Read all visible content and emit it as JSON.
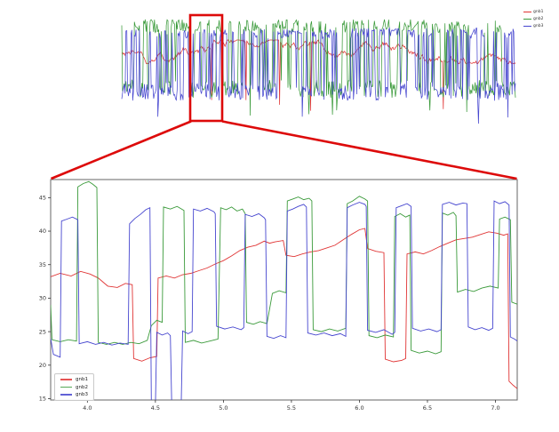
{
  "figure": {
    "background": "#ffffff",
    "highlight_color": "#dd0a0a",
    "spine_color": "#666666",
    "tick_color": "#333333"
  },
  "series_meta": [
    {
      "name": "gnb1",
      "color": "#e03535"
    },
    {
      "name": "gnb2",
      "color": "#3a9a3a"
    },
    {
      "name": "gnb3",
      "color": "#4646cf"
    }
  ],
  "chart_data": [
    {
      "id": "overview",
      "type": "line",
      "legend_position": "upper right",
      "axes_visible": false,
      "n": 470,
      "seed": 97,
      "series": [
        {
          "name": "gnb1",
          "color": "#e03535",
          "kind": "wander",
          "base": 36.5,
          "range": [
            32.5,
            40.5
          ],
          "step": 0.9,
          "dip_p": 0.018,
          "dip": [
            16,
            21
          ]
        },
        {
          "name": "gnb2",
          "color": "#3a9a3a",
          "kind": "square",
          "high": [
            43,
            47.5
          ],
          "low": [
            21,
            27
          ],
          "toggle_p": 0.22,
          "deep_p": 0.012,
          "deep": [
            14,
            17
          ]
        },
        {
          "name": "gnb3",
          "color": "#4646cf",
          "kind": "square",
          "high": [
            41,
            44.5
          ],
          "low": [
            20,
            26
          ],
          "toggle_p": 0.26,
          "deep_p": 0.01,
          "deep": [
            12,
            15
          ]
        }
      ]
    },
    {
      "id": "zoom",
      "type": "line",
      "legend_position": "lower left",
      "xlim": [
        3.73,
        7.16
      ],
      "ylim": [
        14.8,
        47.7
      ],
      "xticks": [
        4.0,
        4.5,
        5.0,
        5.5,
        6.0,
        6.5,
        7.0
      ],
      "xtick_labels": [
        "4.0",
        "4.5",
        "5.0",
        "5.5",
        "6.0",
        "6.5",
        "7.0"
      ],
      "yticks": [
        15,
        20,
        25,
        30,
        35,
        40,
        45
      ],
      "ytick_labels": [
        "15",
        "20",
        "25",
        "30",
        "35",
        "40",
        "45"
      ],
      "series": [
        {
          "name": "gnb1",
          "color": "#e03535",
          "points": [
            [
              3.73,
              33.2
            ],
            [
              3.8,
              33.7
            ],
            [
              3.88,
              33.3
            ],
            [
              3.95,
              34.0
            ],
            [
              4.02,
              33.6
            ],
            [
              4.08,
              33.0
            ],
            [
              4.15,
              31.8
            ],
            [
              4.22,
              31.6
            ],
            [
              4.28,
              32.2
            ],
            [
              4.33,
              32.0
            ],
            [
              4.34,
              21.0
            ],
            [
              4.4,
              20.6
            ],
            [
              4.46,
              21.1
            ],
            [
              4.51,
              21.3
            ],
            [
              4.52,
              33.0
            ],
            [
              4.58,
              33.3
            ],
            [
              4.64,
              33.0
            ],
            [
              4.7,
              33.5
            ],
            [
              4.76,
              33.7
            ],
            [
              4.82,
              34.1
            ],
            [
              4.88,
              34.5
            ],
            [
              4.94,
              35.1
            ],
            [
              5.0,
              35.6
            ],
            [
              5.06,
              36.3
            ],
            [
              5.12,
              37.1
            ],
            [
              5.18,
              37.6
            ],
            [
              5.24,
              37.9
            ],
            [
              5.3,
              38.5
            ],
            [
              5.34,
              38.2
            ],
            [
              5.38,
              38.4
            ],
            [
              5.44,
              38.6
            ],
            [
              5.46,
              36.4
            ],
            [
              5.52,
              36.2
            ],
            [
              5.58,
              36.6
            ],
            [
              5.64,
              36.9
            ],
            [
              5.7,
              37.1
            ],
            [
              5.76,
              37.5
            ],
            [
              5.82,
              37.9
            ],
            [
              5.88,
              38.7
            ],
            [
              5.94,
              39.5
            ],
            [
              6.0,
              40.2
            ],
            [
              6.04,
              40.4
            ],
            [
              6.06,
              37.4
            ],
            [
              6.12,
              37.0
            ],
            [
              6.18,
              36.8
            ],
            [
              6.19,
              20.9
            ],
            [
              6.25,
              20.5
            ],
            [
              6.31,
              20.7
            ],
            [
              6.34,
              21.0
            ],
            [
              6.35,
              36.6
            ],
            [
              6.41,
              36.9
            ],
            [
              6.47,
              36.6
            ],
            [
              6.53,
              37.1
            ],
            [
              6.59,
              37.7
            ],
            [
              6.65,
              38.2
            ],
            [
              6.71,
              38.7
            ],
            [
              6.77,
              38.9
            ],
            [
              6.83,
              39.1
            ],
            [
              6.89,
              39.5
            ],
            [
              6.95,
              39.9
            ],
            [
              7.01,
              39.7
            ],
            [
              7.06,
              39.4
            ],
            [
              7.09,
              39.6
            ],
            [
              7.1,
              17.6
            ],
            [
              7.13,
              17.0
            ],
            [
              7.16,
              16.5
            ]
          ]
        },
        {
          "name": "gnb2",
          "color": "#3a9a3a",
          "points": [
            [
              3.73,
              29.0
            ],
            [
              3.74,
              23.8
            ],
            [
              3.8,
              23.5
            ],
            [
              3.86,
              23.8
            ],
            [
              3.92,
              23.6
            ],
            [
              3.93,
              46.6
            ],
            [
              3.97,
              47.1
            ],
            [
              4.01,
              47.4
            ],
            [
              4.04,
              47.0
            ],
            [
              4.07,
              46.5
            ],
            [
              4.08,
              23.4
            ],
            [
              4.14,
              23.1
            ],
            [
              4.2,
              23.4
            ],
            [
              4.26,
              23.1
            ],
            [
              4.32,
              23.4
            ],
            [
              4.38,
              23.2
            ],
            [
              4.44,
              23.7
            ],
            [
              4.47,
              25.9
            ],
            [
              4.51,
              26.7
            ],
            [
              4.55,
              26.4
            ],
            [
              4.56,
              43.6
            ],
            [
              4.61,
              43.3
            ],
            [
              4.66,
              43.7
            ],
            [
              4.71,
              43.1
            ],
            [
              4.72,
              23.4
            ],
            [
              4.78,
              23.7
            ],
            [
              4.84,
              23.3
            ],
            [
              4.9,
              23.6
            ],
            [
              4.96,
              23.9
            ],
            [
              4.98,
              43.5
            ],
            [
              5.02,
              43.2
            ],
            [
              5.06,
              43.6
            ],
            [
              5.1,
              43.0
            ],
            [
              5.14,
              43.3
            ],
            [
              5.16,
              42.6
            ],
            [
              5.17,
              26.4
            ],
            [
              5.22,
              26.1
            ],
            [
              5.27,
              26.5
            ],
            [
              5.32,
              26.2
            ],
            [
              5.36,
              30.7
            ],
            [
              5.41,
              31.1
            ],
            [
              5.46,
              30.8
            ],
            [
              5.47,
              44.5
            ],
            [
              5.51,
              44.8
            ],
            [
              5.55,
              45.1
            ],
            [
              5.59,
              44.7
            ],
            [
              5.63,
              44.9
            ],
            [
              5.65,
              44.5
            ],
            [
              5.66,
              25.3
            ],
            [
              5.72,
              25.0
            ],
            [
              5.78,
              25.4
            ],
            [
              5.84,
              25.1
            ],
            [
              5.9,
              25.5
            ],
            [
              5.91,
              44.1
            ],
            [
              5.95,
              44.5
            ],
            [
              6.0,
              45.2
            ],
            [
              6.04,
              44.8
            ],
            [
              6.06,
              44.5
            ],
            [
              6.07,
              24.4
            ],
            [
              6.13,
              24.1
            ],
            [
              6.19,
              24.5
            ],
            [
              6.25,
              24.2
            ],
            [
              6.26,
              42.2
            ],
            [
              6.3,
              42.6
            ],
            [
              6.34,
              42.1
            ],
            [
              6.37,
              42.4
            ],
            [
              6.38,
              22.2
            ],
            [
              6.44,
              21.8
            ],
            [
              6.5,
              22.1
            ],
            [
              6.56,
              21.7
            ],
            [
              6.6,
              22.0
            ],
            [
              6.61,
              42.7
            ],
            [
              6.65,
              42.4
            ],
            [
              6.69,
              42.8
            ],
            [
              6.71,
              42.3
            ],
            [
              6.72,
              30.9
            ],
            [
              6.78,
              31.3
            ],
            [
              6.84,
              31.0
            ],
            [
              6.9,
              31.5
            ],
            [
              6.96,
              31.8
            ],
            [
              7.02,
              31.5
            ],
            [
              7.03,
              41.8
            ],
            [
              7.07,
              42.1
            ],
            [
              7.11,
              41.7
            ],
            [
              7.12,
              29.4
            ],
            [
              7.16,
              29.1
            ]
          ]
        },
        {
          "name": "gnb3",
          "color": "#4646cf",
          "points": [
            [
              3.73,
              24.0
            ],
            [
              3.75,
              21.6
            ],
            [
              3.8,
              21.2
            ],
            [
              3.81,
              41.5
            ],
            [
              3.85,
              41.8
            ],
            [
              3.89,
              42.1
            ],
            [
              3.93,
              41.7
            ],
            [
              3.94,
              23.2
            ],
            [
              4.0,
              23.5
            ],
            [
              4.06,
              23.1
            ],
            [
              4.12,
              23.4
            ],
            [
              4.18,
              23.0
            ],
            [
              4.24,
              23.3
            ],
            [
              4.3,
              23.1
            ],
            [
              4.31,
              41.1
            ],
            [
              4.35,
              41.9
            ],
            [
              4.39,
              42.5
            ],
            [
              4.43,
              43.2
            ],
            [
              4.46,
              43.5
            ],
            [
              4.47,
              14.4
            ],
            [
              4.5,
              14.1
            ],
            [
              4.51,
              24.9
            ],
            [
              4.55,
              24.5
            ],
            [
              4.59,
              24.8
            ],
            [
              4.61,
              24.4
            ],
            [
              4.62,
              14.3
            ],
            [
              4.66,
              14.0
            ],
            [
              4.69,
              14.2
            ],
            [
              4.7,
              25.1
            ],
            [
              4.74,
              24.7
            ],
            [
              4.77,
              25.0
            ],
            [
              4.78,
              43.3
            ],
            [
              4.83,
              43.0
            ],
            [
              4.88,
              43.4
            ],
            [
              4.93,
              42.9
            ],
            [
              4.94,
              42.6
            ],
            [
              4.95,
              25.8
            ],
            [
              5.01,
              25.4
            ],
            [
              5.07,
              25.7
            ],
            [
              5.13,
              25.3
            ],
            [
              5.15,
              25.6
            ],
            [
              5.16,
              42.5
            ],
            [
              5.21,
              42.2
            ],
            [
              5.26,
              42.6
            ],
            [
              5.3,
              42.0
            ],
            [
              5.31,
              41.7
            ],
            [
              5.32,
              24.3
            ],
            [
              5.37,
              24.0
            ],
            [
              5.42,
              24.4
            ],
            [
              5.46,
              24.1
            ],
            [
              5.47,
              43.0
            ],
            [
              5.51,
              43.3
            ],
            [
              5.55,
              43.7
            ],
            [
              5.59,
              44.0
            ],
            [
              5.61,
              43.6
            ],
            [
              5.62,
              24.8
            ],
            [
              5.68,
              24.5
            ],
            [
              5.74,
              24.8
            ],
            [
              5.8,
              24.4
            ],
            [
              5.86,
              24.7
            ],
            [
              5.9,
              24.3
            ],
            [
              5.91,
              43.5
            ],
            [
              5.95,
              43.9
            ],
            [
              6.0,
              44.3
            ],
            [
              6.04,
              44.0
            ],
            [
              6.05,
              43.7
            ],
            [
              6.06,
              25.2
            ],
            [
              6.12,
              24.9
            ],
            [
              6.18,
              25.3
            ],
            [
              6.24,
              24.6
            ],
            [
              6.26,
              24.9
            ],
            [
              6.27,
              43.5
            ],
            [
              6.31,
              43.8
            ],
            [
              6.35,
              44.1
            ],
            [
              6.38,
              43.7
            ],
            [
              6.39,
              25.5
            ],
            [
              6.45,
              25.1
            ],
            [
              6.51,
              25.4
            ],
            [
              6.57,
              25.0
            ],
            [
              6.6,
              25.3
            ],
            [
              6.61,
              44.0
            ],
            [
              6.66,
              44.3
            ],
            [
              6.71,
              43.9
            ],
            [
              6.76,
              44.2
            ],
            [
              6.79,
              44.1
            ],
            [
              6.8,
              25.7
            ],
            [
              6.85,
              25.3
            ],
            [
              6.9,
              25.6
            ],
            [
              6.95,
              25.2
            ],
            [
              6.98,
              25.5
            ],
            [
              6.99,
              44.5
            ],
            [
              7.03,
              44.1
            ],
            [
              7.07,
              44.4
            ],
            [
              7.1,
              43.9
            ],
            [
              7.11,
              24.2
            ],
            [
              7.14,
              23.9
            ],
            [
              7.16,
              23.6
            ]
          ]
        }
      ]
    }
  ]
}
